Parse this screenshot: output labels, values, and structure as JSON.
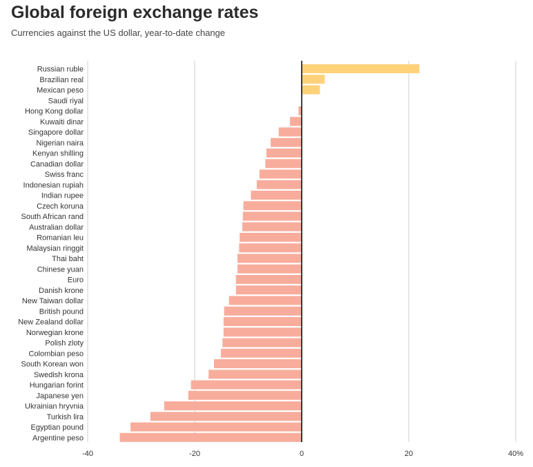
{
  "header": {
    "title": "Global foreign exchange rates",
    "subtitle": "Currencies against the US dollar, year-to-date change"
  },
  "colors": {
    "positive": "#ffd27a",
    "negative": "#f8ad9c",
    "zero_line": "#000000",
    "grid": "#cfcfcf"
  },
  "chart_data": {
    "type": "bar",
    "orientation": "horizontal",
    "title": "Global foreign exchange rates",
    "subtitle": "Currencies against the US dollar, year-to-date change",
    "xlim": [
      -40,
      40
    ],
    "ticks": [
      -40,
      -20,
      0,
      20,
      40
    ],
    "tick_labels": [
      "-40",
      "-20",
      "0",
      "20",
      "40%"
    ],
    "grid": true,
    "categories": [
      "Russian ruble",
      "Brazilian real",
      "Mexican peso",
      "Saudi riyal",
      "Hong Kong dollar",
      "Kuwaiti dinar",
      "Singapore dollar",
      "Nigerian naira",
      "Kenyan shilling",
      "Canadian dollar",
      "Swiss franc",
      "Indonesian rupiah",
      "Indian rupee",
      "Czech koruna",
      "South African rand",
      "Australian dollar",
      "Romanian leu",
      "Malaysian ringgit",
      "Thai baht",
      "Chinese yuan",
      "Euro",
      "Danish krone",
      "New Taiwan dollar",
      "British pound",
      "New Zealand dollar",
      "Norwegian krone",
      "Polish zloty",
      "Colombian peso",
      "South Korean won",
      "Swedish krona",
      "Hungarian forint",
      "Japanese yen",
      "Ukrainian hryvnia",
      "Turkish lira",
      "Egyptian pound",
      "Argentine peso"
    ],
    "values": [
      22.0,
      4.3,
      3.4,
      0.0,
      -0.6,
      -2.2,
      -4.3,
      -5.8,
      -6.6,
      -6.8,
      -7.9,
      -8.4,
      -9.5,
      -10.9,
      -11.0,
      -11.1,
      -11.6,
      -11.7,
      -12.0,
      -12.0,
      -12.3,
      -12.3,
      -13.6,
      -14.5,
      -14.6,
      -14.6,
      -14.8,
      -15.1,
      -16.4,
      -17.4,
      -20.7,
      -21.2,
      -25.7,
      -28.3,
      -32.0,
      -34.0
    ]
  }
}
